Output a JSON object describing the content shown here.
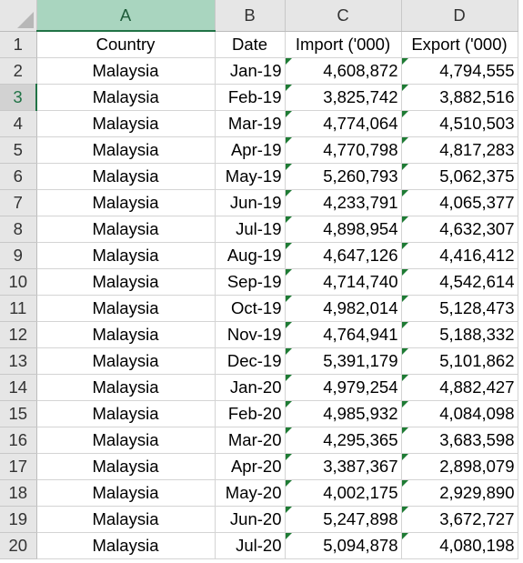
{
  "columns": [
    {
      "letter": "A"
    },
    {
      "letter": "B"
    },
    {
      "letter": "C"
    },
    {
      "letter": "D"
    }
  ],
  "header_row": {
    "row_number": "1",
    "country": "Country",
    "date": "Date",
    "import": "Import ('000)",
    "export": "Export ('000)"
  },
  "selected_row": "3",
  "selected_column": "A",
  "rows": [
    {
      "row_number": "2",
      "country": "Malaysia",
      "date": "Jan-19",
      "import": "4,608,872",
      "export": "4,794,555"
    },
    {
      "row_number": "3",
      "country": "Malaysia",
      "date": "Feb-19",
      "import": "3,825,742",
      "export": "3,882,516"
    },
    {
      "row_number": "4",
      "country": "Malaysia",
      "date": "Mar-19",
      "import": "4,774,064",
      "export": "4,510,503"
    },
    {
      "row_number": "5",
      "country": "Malaysia",
      "date": "Apr-19",
      "import": "4,770,798",
      "export": "4,817,283"
    },
    {
      "row_number": "6",
      "country": "Malaysia",
      "date": "May-19",
      "import": "5,260,793",
      "export": "5,062,375"
    },
    {
      "row_number": "7",
      "country": "Malaysia",
      "date": "Jun-19",
      "import": "4,233,791",
      "export": "4,065,377"
    },
    {
      "row_number": "8",
      "country": "Malaysia",
      "date": "Jul-19",
      "import": "4,898,954",
      "export": "4,632,307"
    },
    {
      "row_number": "9",
      "country": "Malaysia",
      "date": "Aug-19",
      "import": "4,647,126",
      "export": "4,416,412"
    },
    {
      "row_number": "10",
      "country": "Malaysia",
      "date": "Sep-19",
      "import": "4,714,740",
      "export": "4,542,614"
    },
    {
      "row_number": "11",
      "country": "Malaysia",
      "date": "Oct-19",
      "import": "4,982,014",
      "export": "5,128,473"
    },
    {
      "row_number": "12",
      "country": "Malaysia",
      "date": "Nov-19",
      "import": "4,764,941",
      "export": "5,188,332"
    },
    {
      "row_number": "13",
      "country": "Malaysia",
      "date": "Dec-19",
      "import": "5,391,179",
      "export": "5,101,862"
    },
    {
      "row_number": "14",
      "country": "Malaysia",
      "date": "Jan-20",
      "import": "4,979,254",
      "export": "4,882,427"
    },
    {
      "row_number": "15",
      "country": "Malaysia",
      "date": "Feb-20",
      "import": "4,985,932",
      "export": "4,084,098"
    },
    {
      "row_number": "16",
      "country": "Malaysia",
      "date": "Mar-20",
      "import": "4,295,365",
      "export": "3,683,598"
    },
    {
      "row_number": "17",
      "country": "Malaysia",
      "date": "Apr-20",
      "import": "3,387,367",
      "export": "2,898,079"
    },
    {
      "row_number": "18",
      "country": "Malaysia",
      "date": "May-20",
      "import": "4,002,175",
      "export": "2,929,890"
    },
    {
      "row_number": "19",
      "country": "Malaysia",
      "date": "Jun-20",
      "import": "5,247,898",
      "export": "3,672,727"
    },
    {
      "row_number": "20",
      "country": "Malaysia",
      "date": "Jul-20",
      "import": "5,094,878",
      "export": "4,080,198"
    }
  ],
  "colors": {
    "selection_accent": "#217346",
    "error_indicator": "#1e7b34",
    "header_bg": "#e6e6e6"
  },
  "icons": {
    "select_all": "select-all-triangle-icon",
    "number_stored_as_text": "green-triangle-indicator-icon"
  }
}
